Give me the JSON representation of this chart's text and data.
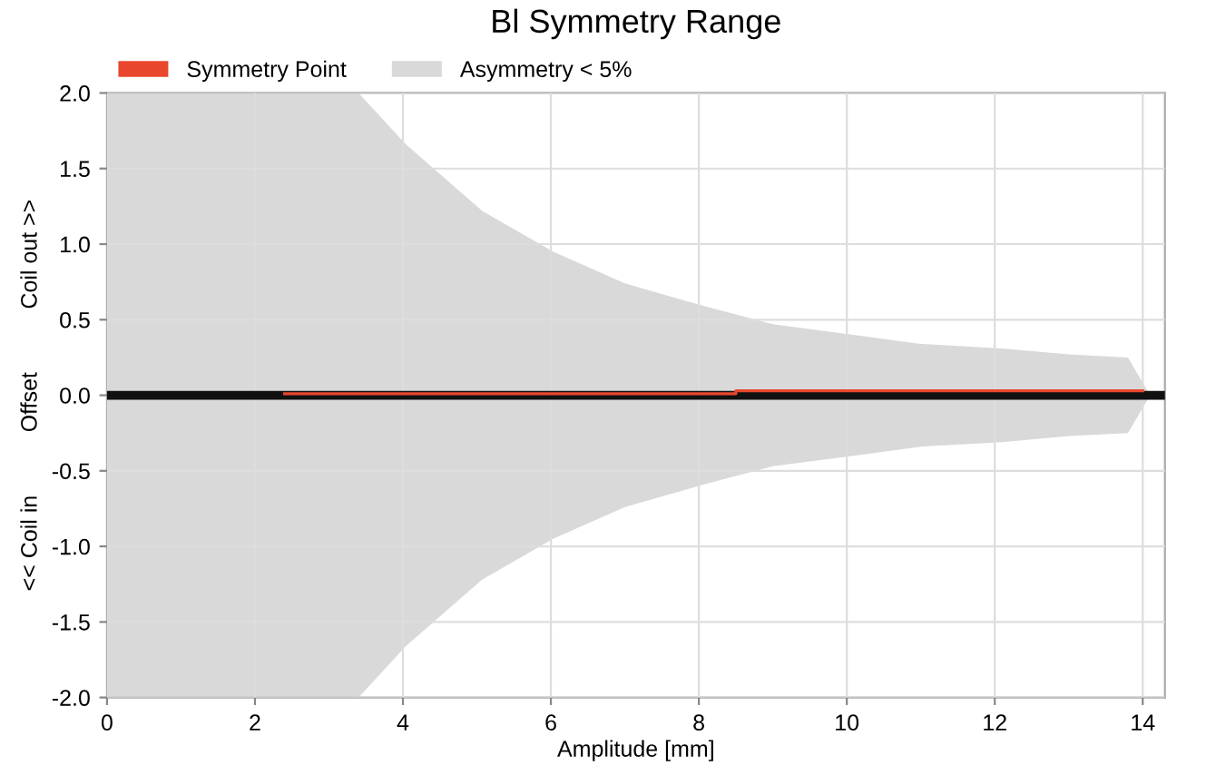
{
  "chart_data": {
    "type": "area",
    "title": "Bl Symmetry Range",
    "xlabel": "Amplitude [mm]",
    "ylabel": "<< Coil in          Offset          Coil out >>",
    "series": [
      {
        "name": "Symmetry Point",
        "type": "line",
        "color": "#e8472e",
        "x": [
          2.4,
          8.5,
          8.5,
          14.0
        ],
        "values": [
          0.01,
          0.01,
          0.03,
          0.03
        ]
      },
      {
        "name": "Asymmetry < 5%",
        "color": "#d9d9d9",
        "x": [
          0,
          3.4,
          4.04,
          5.07,
          6.03,
          7.0,
          8.07,
          9.0,
          10.09,
          11.0,
          12.1,
          13.0,
          13.8,
          14.1
        ],
        "values": [
          2.0,
          2.0,
          1.66,
          1.22,
          0.95,
          0.74,
          0.59,
          0.47,
          0.4,
          0.34,
          0.31,
          0.27,
          0.25,
          0.0
        ]
      },
      {
        "color": "#d9d9d9",
        "x": [
          0,
          3.4,
          4.04,
          5.07,
          6.03,
          7.0,
          8.07,
          9.0,
          10.09,
          11.0,
          12.1,
          13.0,
          13.8,
          14.1
        ],
        "values": [
          -2.0,
          -2.0,
          -1.66,
          -1.22,
          -0.95,
          -0.74,
          -0.59,
          -0.47,
          -0.4,
          -0.34,
          -0.31,
          -0.27,
          -0.25,
          0.0
        ]
      }
    ],
    "ref_lines": [
      {
        "axis": "y",
        "value": 0,
        "color": "#111111"
      }
    ],
    "xlim": [
      0,
      14.3
    ],
    "ylim": [
      -2.0,
      2.0
    ],
    "xticks": [
      0,
      2,
      4,
      6,
      8,
      10,
      12,
      14
    ],
    "yticks": [
      {
        "value": -2.0,
        "label": "-2.0"
      },
      {
        "value": -1.5,
        "label": "-1.5"
      },
      {
        "value": -1.0,
        "label": "-1.0"
      },
      {
        "value": -0.5,
        "label": "-0.5"
      },
      {
        "value": 0.0,
        "label": "0.0"
      },
      {
        "value": 0.5,
        "label": "0.5"
      },
      {
        "value": 1.0,
        "label": "1.0"
      },
      {
        "value": 1.5,
        "label": "1.5"
      },
      {
        "value": 2.0,
        "label": "2.0"
      }
    ],
    "grid": true,
    "legend": "top left"
  }
}
